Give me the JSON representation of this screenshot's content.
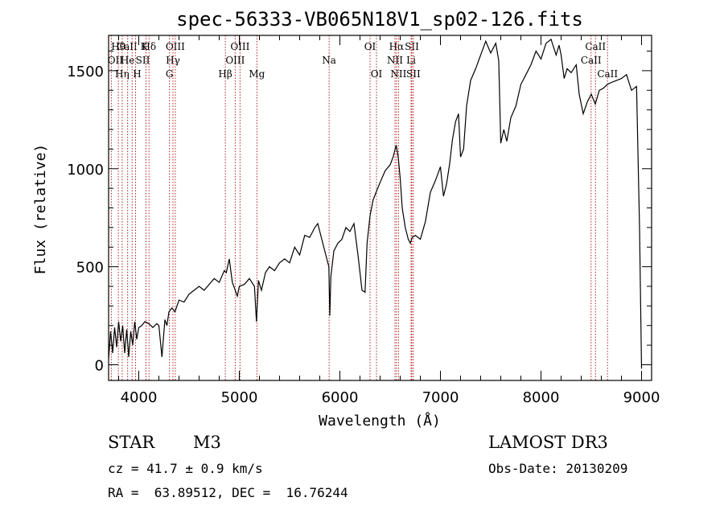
{
  "chart_data": {
    "type": "line",
    "title": "spec-56333-VB065N18V1_sp02-126.fits",
    "xlabel": "Wavelength (Å)",
    "ylabel": "Flux (relative)",
    "xlim": [
      3700,
      9100
    ],
    "ylim": [
      -80,
      1680
    ],
    "x_ticks": [
      4000,
      5000,
      6000,
      7000,
      8000,
      9000
    ],
    "y_ticks": [
      0,
      500,
      1000,
      1500
    ],
    "x_tick_labels": [
      "4000",
      "5000",
      "6000",
      "7000",
      "8000",
      "9000"
    ],
    "y_tick_labels": [
      "0",
      "500",
      "1000",
      "1500"
    ],
    "x_minor_step": 200,
    "y_minor_step": 100,
    "series": [
      {
        "name": "flux",
        "x": [
          3700,
          3720,
          3740,
          3760,
          3780,
          3800,
          3820,
          3840,
          3860,
          3880,
          3900,
          3920,
          3940,
          3960,
          3980,
          4000,
          4030,
          4060,
          4100,
          4140,
          4180,
          4200,
          4230,
          4260,
          4280,
          4300,
          4330,
          4360,
          4400,
          4450,
          4500,
          4550,
          4600,
          4650,
          4700,
          4750,
          4800,
          4850,
          4870,
          4900,
          4930,
          4960,
          4980,
          5000,
          5050,
          5100,
          5150,
          5170,
          5190,
          5220,
          5260,
          5300,
          5350,
          5400,
          5450,
          5500,
          5550,
          5600,
          5650,
          5700,
          5750,
          5780,
          5820,
          5860,
          5890,
          5900,
          5910,
          5940,
          5980,
          6020,
          6060,
          6100,
          6140,
          6180,
          6220,
          6250,
          6270,
          6300,
          6330,
          6360,
          6400,
          6450,
          6500,
          6530,
          6560,
          6580,
          6600,
          6620,
          6650,
          6680,
          6700,
          6720,
          6750,
          6800,
          6850,
          6900,
          6950,
          7000,
          7030,
          7060,
          7090,
          7120,
          7150,
          7180,
          7200,
          7230,
          7260,
          7300,
          7350,
          7400,
          7450,
          7500,
          7550,
          7580,
          7600,
          7630,
          7660,
          7700,
          7750,
          7800,
          7850,
          7900,
          7950,
          8000,
          8050,
          8100,
          8150,
          8180,
          8200,
          8230,
          8260,
          8300,
          8350,
          8380,
          8420,
          8460,
          8500,
          8540,
          8580,
          8620,
          8660,
          8700,
          8750,
          8800,
          8850,
          8900,
          8950,
          8980,
          9000
        ],
        "values": [
          30,
          170,
          60,
          190,
          90,
          220,
          120,
          200,
          60,
          180,
          40,
          170,
          100,
          220,
          130,
          190,
          200,
          220,
          210,
          190,
          210,
          200,
          40,
          230,
          200,
          270,
          290,
          270,
          330,
          320,
          360,
          380,
          400,
          380,
          410,
          440,
          420,
          480,
          470,
          540,
          420,
          380,
          350,
          400,
          410,
          440,
          400,
          220,
          430,
          380,
          470,
          500,
          480,
          520,
          540,
          520,
          600,
          560,
          660,
          650,
          700,
          720,
          640,
          560,
          500,
          250,
          450,
          580,
          620,
          640,
          700,
          680,
          720,
          560,
          380,
          370,
          620,
          760,
          840,
          880,
          930,
          990,
          1020,
          1060,
          1120,
          1060,
          950,
          800,
          700,
          640,
          620,
          650,
          660,
          640,
          730,
          880,
          940,
          1010,
          860,
          920,
          1020,
          1150,
          1240,
          1280,
          1060,
          1100,
          1320,
          1450,
          1510,
          1580,
          1650,
          1590,
          1640,
          1550,
          1130,
          1200,
          1140,
          1260,
          1320,
          1430,
          1480,
          1530,
          1600,
          1560,
          1640,
          1660,
          1580,
          1630,
          1580,
          1460,
          1510,
          1490,
          1530,
          1380,
          1280,
          1340,
          1380,
          1330,
          1400,
          1410,
          1430,
          1440,
          1450,
          1460,
          1480,
          1400,
          1420,
          700,
          -20
        ]
      }
    ],
    "line_marks": [
      {
        "label": "Hθ",
        "wavelength": 3797,
        "row": 0,
        "dx": 0
      },
      {
        "label": "OII",
        "wavelength": 3727,
        "row": 1,
        "dx": 5
      },
      {
        "label": "Hη",
        "wavelength": 3835,
        "row": 2,
        "dx": 0
      },
      {
        "label": "CaII K",
        "wavelength": 3934,
        "row": 0,
        "dx": 0
      },
      {
        "label": "He",
        "wavelength": 3889,
        "row": 1,
        "dx": 0
      },
      {
        "label": "H",
        "wavelength": 3968,
        "row": 2,
        "dx": 2
      },
      {
        "label": "Hδ",
        "wavelength": 4102,
        "row": 0,
        "dx": 0
      },
      {
        "label": "SII",
        "wavelength": 4072,
        "row": 1,
        "dx": -4
      },
      {
        "label": "OIII",
        "wavelength": 4363,
        "row": 0,
        "dx": 0
      },
      {
        "label": "Hγ",
        "wavelength": 4340,
        "row": 1,
        "dx": 0
      },
      {
        "label": "G",
        "wavelength": 4305,
        "row": 2,
        "dx": 0
      },
      {
        "label": "OIII",
        "wavelength": 5007,
        "row": 0,
        "dx": 0
      },
      {
        "label": "OIII",
        "wavelength": 4959,
        "row": 1,
        "dx": 0
      },
      {
        "label": "Hβ",
        "wavelength": 4861,
        "row": 2,
        "dx": 0
      },
      {
        "label": "Mg",
        "wavelength": 5175,
        "row": 2,
        "dx": 0
      },
      {
        "label": "Na",
        "wavelength": 5893,
        "row": 1,
        "dx": 0
      },
      {
        "label": "OI",
        "wavelength": 6300,
        "row": 0,
        "dx": 0
      },
      {
        "label": "OI",
        "wavelength": 6364,
        "row": 2,
        "dx": 0
      },
      {
        "label": "Hα",
        "wavelength": 6563,
        "row": 0,
        "dx": 0
      },
      {
        "label": "NII",
        "wavelength": 6548,
        "row": 1,
        "dx": 0
      },
      {
        "label": "NII",
        "wavelength": 6583,
        "row": 2,
        "dx": 0
      },
      {
        "label": "SII",
        "wavelength": 6716,
        "row": 0,
        "dx": 0
      },
      {
        "label": "Li",
        "wavelength": 6708,
        "row": 1,
        "dx": 0
      },
      {
        "label": "SII",
        "wavelength": 6731,
        "row": 2,
        "dx": 0
      },
      {
        "label": "CaII",
        "wavelength": 8542,
        "row": 0,
        "dx": 0
      },
      {
        "label": "CaII",
        "wavelength": 8498,
        "row": 1,
        "dx": 0
      },
      {
        "label": "CaII",
        "wavelength": 8662,
        "row": 2,
        "dx": 0
      }
    ]
  },
  "footer": {
    "object_class": "STAR",
    "subclass": "M3",
    "survey": "LAMOST DR3",
    "cz": "cz = 41.7 ± 0.9 km/s",
    "obs_date": "Obs-Date: 20130209",
    "coords": "RA =  63.89512, DEC =  16.76244"
  },
  "colors": {
    "line_marker": "#b22222",
    "spectrum": "#000000"
  }
}
